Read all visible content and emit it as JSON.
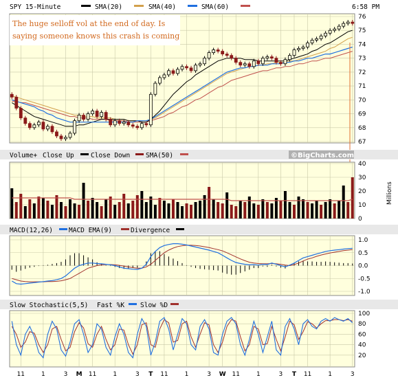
{
  "colors": {
    "panel_bg": "#FFFFDD",
    "grid": "#C8C8A8",
    "sma20": "#000000",
    "sma40": "#D2A04C",
    "sma60": "#1F6FE0",
    "sma_red": "#C0504D",
    "candle_up": "#000000",
    "candle_down": "#8B1A1A",
    "annotation": "#D2691E",
    "arrow": "#E07030",
    "macd": "#1F6FE0",
    "signal": "#A0302C",
    "fastk": "#1F6FE0",
    "slowd": "#A0302C"
  },
  "header": {
    "symbol": "SPY 15-Minute",
    "time": "6:58 PM",
    "legend": [
      {
        "label": "SMA(20)",
        "color": "#000000"
      },
      {
        "label": "SMA(40)",
        "color": "#D2A04C"
      },
      {
        "label": "SMA(60)",
        "color": "#1F6FE0"
      }
    ]
  },
  "annotation": {
    "line1": "The huge selloff vol at the end of day. Is",
    "line2": "saying someone knows this crash is coming"
  },
  "watermark": "©BigCharts.com",
  "volume_header": {
    "title": "Volume+",
    "up": "Close Up",
    "down": "Close Down",
    "sma": "SMA(50)"
  },
  "volume_axis_label": "Millions",
  "macd_header": {
    "title": "MACD(12,26)",
    "ema": "MACD EMA(9)",
    "div": "Divergence"
  },
  "stoch_header": {
    "title": "Slow Stochastic(5,5)",
    "fast": "Fast %K",
    "slow": "Slow %D"
  },
  "chart_data": {
    "type": "line",
    "price": {
      "yticks": [
        67,
        68,
        69,
        70,
        71,
        72,
        73,
        74,
        75,
        76
      ],
      "ylim": [
        67,
        76
      ],
      "close": [
        70.2,
        69.4,
        68.7,
        68.3,
        68.0,
        68.2,
        68.4,
        67.9,
        68.1,
        67.7,
        67.4,
        67.2,
        67.3,
        67.6,
        68.5,
        68.9,
        68.6,
        69.0,
        69.2,
        68.8,
        69.1,
        68.6,
        68.2,
        68.5,
        68.3,
        68.4,
        68.2,
        68.1,
        68.0,
        68.3,
        68.2,
        70.4,
        71.2,
        71.6,
        71.8,
        72.1,
        71.9,
        72.2,
        72.4,
        72.3,
        72.1,
        72.5,
        72.6,
        73.0,
        73.4,
        73.6,
        73.5,
        73.3,
        73.2,
        73.0,
        72.7,
        72.5,
        72.6,
        72.4,
        72.8,
        72.6,
        73.0,
        73.1,
        73.0,
        72.7,
        72.6,
        72.9,
        73.2,
        73.6,
        73.7,
        73.8,
        74.1,
        74.3,
        74.4,
        74.6,
        74.8,
        75.0,
        75.1,
        75.3,
        75.5,
        75.6,
        75.5
      ],
      "sma20": [
        69.8,
        69.6,
        69.4,
        69.2,
        69.0,
        68.8,
        68.7,
        68.6,
        68.5,
        68.4,
        68.3,
        68.2,
        68.1,
        68.1,
        68.1,
        68.2,
        68.2,
        68.3,
        68.4,
        68.5,
        68.6,
        68.6,
        68.6,
        68.6,
        68.6,
        68.6,
        68.5,
        68.5,
        68.5,
        68.4,
        68.4,
        68.6,
        68.9,
        69.2,
        69.6,
        70.0,
        70.4,
        70.7,
        71.0,
        71.3,
        71.5,
        71.8,
        72.0,
        72.2,
        72.4,
        72.6,
        72.8,
        72.9,
        73.0,
        73.0,
        73.0,
        73.0,
        72.9,
        72.9,
        72.9,
        72.8,
        72.8,
        72.8,
        72.8,
        72.8,
        72.8,
        72.8,
        72.9,
        73.0,
        73.1,
        73.2,
        73.3,
        73.5,
        73.6,
        73.8,
        74.0,
        74.1,
        74.3,
        74.5,
        74.7,
        74.9,
        75.0
      ],
      "sma40": [
        70.3,
        70.2,
        70.1,
        70.0,
        69.9,
        69.8,
        69.7,
        69.6,
        69.5,
        69.4,
        69.3,
        69.2,
        69.1,
        69.0,
        68.9,
        68.9,
        68.8,
        68.8,
        68.8,
        68.7,
        68.7,
        68.7,
        68.7,
        68.6,
        68.6,
        68.6,
        68.5,
        68.5,
        68.5,
        68.5,
        68.5,
        68.6,
        68.7,
        68.9,
        69.1,
        69.3,
        69.5,
        69.7,
        69.9,
        70.1,
        70.3,
        70.5,
        70.7,
        70.9,
        71.1,
        71.3,
        71.5,
        71.7,
        71.9,
        72.0,
        72.1,
        72.2,
        72.3,
        72.4,
        72.4,
        72.5,
        72.5,
        72.6,
        72.6,
        72.7,
        72.7,
        72.7,
        72.8,
        72.8,
        72.9,
        73.0,
        73.1,
        73.2,
        73.3,
        73.4,
        73.5,
        73.7,
        73.8,
        74.0,
        74.2,
        74.4,
        74.5
      ],
      "sma60": [
        70.0,
        69.9,
        69.8,
        69.7,
        69.6,
        69.5,
        69.3,
        69.2,
        69.0,
        68.9,
        68.7,
        68.6,
        68.5,
        68.4,
        68.4,
        68.4,
        68.4,
        68.4,
        68.4,
        68.4,
        68.4,
        68.4,
        68.4,
        68.4,
        68.4,
        68.4,
        68.4,
        68.4,
        68.5,
        68.5,
        68.5,
        68.6,
        68.8,
        69.0,
        69.2,
        69.4,
        69.6,
        69.8,
        70.0,
        70.2,
        70.4,
        70.6,
        70.8,
        71.0,
        71.2,
        71.4,
        71.6,
        71.8,
        72.0,
        72.1,
        72.2,
        72.3,
        72.3,
        72.4,
        72.4,
        72.5,
        72.5,
        72.5,
        72.6,
        72.6,
        72.6,
        72.7,
        72.7,
        72.8,
        72.8,
        72.9,
        73.0,
        73.0,
        73.1,
        73.2,
        73.3,
        73.3,
        73.4,
        73.5,
        73.6,
        73.7,
        73.8
      ],
      "sma_red": [
        69.9,
        69.9,
        69.8,
        69.8,
        69.7,
        69.6,
        69.5,
        69.4,
        69.3,
        69.2,
        69.1,
        69.0,
        68.9,
        68.8,
        68.8,
        68.7,
        68.7,
        68.7,
        68.6,
        68.6,
        68.6,
        68.6,
        68.5,
        68.5,
        68.5,
        68.5,
        68.4,
        68.4,
        68.4,
        68.4,
        68.4,
        68.5,
        68.6,
        68.7,
        68.8,
        69.0,
        69.1,
        69.3,
        69.5,
        69.6,
        69.8,
        70.0,
        70.1,
        70.3,
        70.5,
        70.7,
        70.9,
        71.0,
        71.2,
        71.4,
        71.5,
        71.6,
        71.7,
        71.8,
        71.9,
        72.0,
        72.1,
        72.1,
        72.2,
        72.3,
        72.3,
        72.4,
        72.4,
        72.5,
        72.6,
        72.6,
        72.7,
        72.8,
        72.8,
        72.9,
        73.0,
        73.0,
        73.1,
        73.2,
        73.3,
        73.4,
        73.5
      ]
    },
    "volume": {
      "yticks": [
        0,
        10,
        20,
        30,
        40
      ],
      "ylim": [
        0,
        40
      ],
      "values": [
        22,
        12,
        18,
        9,
        14,
        11,
        16,
        15,
        13,
        10,
        17,
        12,
        9,
        14,
        11,
        10,
        26,
        13,
        15,
        12,
        9,
        14,
        16,
        10,
        12,
        18,
        11,
        13,
        17,
        20,
        12,
        16,
        10,
        15,
        13,
        11,
        14,
        12,
        9,
        11,
        10,
        12,
        13,
        17,
        23,
        14,
        12,
        11,
        19,
        10,
        9,
        13,
        12,
        16,
        11,
        10,
        14,
        12,
        11,
        15,
        13,
        20,
        12,
        10,
        16,
        14,
        12,
        11,
        13,
        10,
        12,
        14,
        11,
        13,
        24,
        12,
        30
      ],
      "up": [
        true,
        false,
        false,
        true,
        false,
        true,
        false,
        true,
        false,
        true,
        false,
        true,
        false,
        true,
        true,
        false,
        true,
        false,
        true,
        true,
        false,
        true,
        false,
        true,
        false,
        false,
        true,
        false,
        false,
        true,
        true,
        true,
        true,
        false,
        true,
        true,
        false,
        true,
        true,
        false,
        false,
        true,
        true,
        true,
        false,
        true,
        false,
        false,
        true,
        false,
        false,
        true,
        false,
        true,
        true,
        false,
        true,
        false,
        true,
        true,
        false,
        true,
        true,
        false,
        true,
        true,
        false,
        true,
        true,
        false,
        true,
        true,
        false,
        true,
        true,
        false,
        false
      ],
      "sma50": [
        15,
        15,
        15,
        15,
        15,
        15,
        15,
        15,
        15,
        15,
        15,
        15,
        15,
        15,
        14,
        14,
        14,
        14,
        14,
        14,
        14,
        14,
        14,
        14,
        14,
        14,
        14,
        14,
        14,
        14,
        14,
        14,
        14,
        14,
        14,
        14,
        14,
        14,
        14,
        14,
        14,
        14,
        14,
        14,
        14,
        14,
        14,
        14,
        14,
        13,
        13,
        13,
        13,
        13,
        13,
        13,
        13,
        13,
        13,
        13,
        13,
        13,
        13,
        13,
        13,
        13,
        13,
        13,
        13,
        13,
        13,
        13,
        13,
        13,
        13,
        13,
        14
      ]
    },
    "macd": {
      "yticks": [
        1.0,
        0.5,
        0.0,
        -0.5,
        -1.0
      ],
      "tick_labels": [
        "1.0",
        "0.5",
        "0.0",
        "-0.5",
        "-1.0"
      ],
      "ylim": [
        -1.0,
        1.0
      ],
      "macd": [
        -0.6,
        -0.7,
        -0.72,
        -0.7,
        -0.68,
        -0.66,
        -0.64,
        -0.62,
        -0.6,
        -0.58,
        -0.55,
        -0.5,
        -0.4,
        -0.25,
        -0.1,
        0.0,
        0.05,
        0.1,
        0.1,
        0.08,
        0.07,
        0.05,
        0.03,
        0.0,
        -0.05,
        -0.1,
        -0.12,
        -0.14,
        -0.15,
        -0.1,
        0.05,
        0.35,
        0.55,
        0.7,
        0.78,
        0.82,
        0.85,
        0.85,
        0.83,
        0.8,
        0.76,
        0.72,
        0.68,
        0.64,
        0.6,
        0.55,
        0.5,
        0.4,
        0.3,
        0.2,
        0.12,
        0.08,
        0.05,
        0.03,
        0.04,
        0.02,
        0.05,
        0.04,
        0.1,
        0.05,
        0.0,
        -0.05,
        0.02,
        0.1,
        0.2,
        0.3,
        0.35,
        0.4,
        0.45,
        0.5,
        0.55,
        0.58,
        0.6,
        0.62,
        0.64,
        0.66,
        0.67
      ],
      "signal": [
        -0.5,
        -0.55,
        -0.6,
        -0.62,
        -0.63,
        -0.63,
        -0.63,
        -0.63,
        -0.62,
        -0.62,
        -0.61,
        -0.59,
        -0.55,
        -0.5,
        -0.4,
        -0.3,
        -0.2,
        -0.1,
        -0.05,
        0.0,
        0.03,
        0.04,
        0.04,
        0.03,
        0.01,
        -0.02,
        -0.05,
        -0.08,
        -0.1,
        -0.1,
        -0.05,
        0.05,
        0.2,
        0.35,
        0.5,
        0.6,
        0.68,
        0.74,
        0.77,
        0.79,
        0.79,
        0.78,
        0.76,
        0.73,
        0.7,
        0.66,
        0.62,
        0.57,
        0.5,
        0.42,
        0.34,
        0.26,
        0.19,
        0.13,
        0.1,
        0.08,
        0.07,
        0.07,
        0.08,
        0.07,
        0.05,
        0.02,
        0.0,
        0.04,
        0.1,
        0.18,
        0.25,
        0.3,
        0.36,
        0.41,
        0.45,
        0.49,
        0.52,
        0.55,
        0.58,
        0.6,
        0.62
      ]
    },
    "stoch": {
      "yticks": [
        100,
        80,
        60,
        40,
        20
      ],
      "ylim": [
        0,
        100
      ],
      "fastk": [
        85,
        40,
        20,
        60,
        75,
        55,
        25,
        15,
        60,
        85,
        70,
        30,
        18,
        45,
        80,
        88,
        60,
        25,
        40,
        80,
        70,
        35,
        20,
        55,
        80,
        60,
        25,
        15,
        60,
        90,
        75,
        20,
        45,
        85,
        92,
        70,
        30,
        60,
        90,
        80,
        40,
        30,
        75,
        88,
        70,
        25,
        20,
        60,
        85,
        92,
        80,
        40,
        20,
        50,
        85,
        60,
        25,
        55,
        85,
        30,
        20,
        75,
        90,
        70,
        40,
        80,
        88,
        75,
        70,
        85,
        90,
        85,
        92,
        88,
        85,
        90,
        82
      ],
      "slowd": [
        75,
        60,
        35,
        45,
        65,
        62,
        40,
        25,
        40,
        70,
        75,
        50,
        28,
        35,
        65,
        82,
        72,
        42,
        35,
        60,
        75,
        50,
        30,
        40,
        70,
        68,
        40,
        22,
        40,
        78,
        82,
        40,
        35,
        70,
        88,
        82,
        45,
        48,
        80,
        85,
        55,
        35,
        60,
        82,
        78,
        40,
        25,
        45,
        75,
        88,
        85,
        55,
        28,
        40,
        75,
        70,
        40,
        42,
        75,
        50,
        28,
        55,
        85,
        78,
        50,
        65,
        84,
        80,
        72,
        80,
        86,
        86,
        88,
        88,
        86,
        88,
        85
      ]
    },
    "x_ticks": [
      {
        "i": 2,
        "label": "11",
        "bold": false
      },
      {
        "i": 7,
        "label": "1",
        "bold": false
      },
      {
        "i": 12,
        "label": "3",
        "bold": false
      },
      {
        "i": 15,
        "label": "M",
        "bold": true
      },
      {
        "i": 18,
        "label": "11",
        "bold": false
      },
      {
        "i": 23,
        "label": "1",
        "bold": false
      },
      {
        "i": 28,
        "label": "3",
        "bold": false
      },
      {
        "i": 31,
        "label": "T",
        "bold": true
      },
      {
        "i": 34,
        "label": "11",
        "bold": false
      },
      {
        "i": 39,
        "label": "1",
        "bold": false
      },
      {
        "i": 44,
        "label": "3",
        "bold": false
      },
      {
        "i": 47,
        "label": "W",
        "bold": true
      },
      {
        "i": 50,
        "label": "11",
        "bold": false
      },
      {
        "i": 55,
        "label": "1",
        "bold": false
      },
      {
        "i": 60,
        "label": "3",
        "bold": false
      },
      {
        "i": 63,
        "label": "T",
        "bold": true
      },
      {
        "i": 66,
        "label": "11",
        "bold": false
      },
      {
        "i": 71,
        "label": "1",
        "bold": false
      },
      {
        "i": 76,
        "label": "3",
        "bold": false
      }
    ]
  }
}
